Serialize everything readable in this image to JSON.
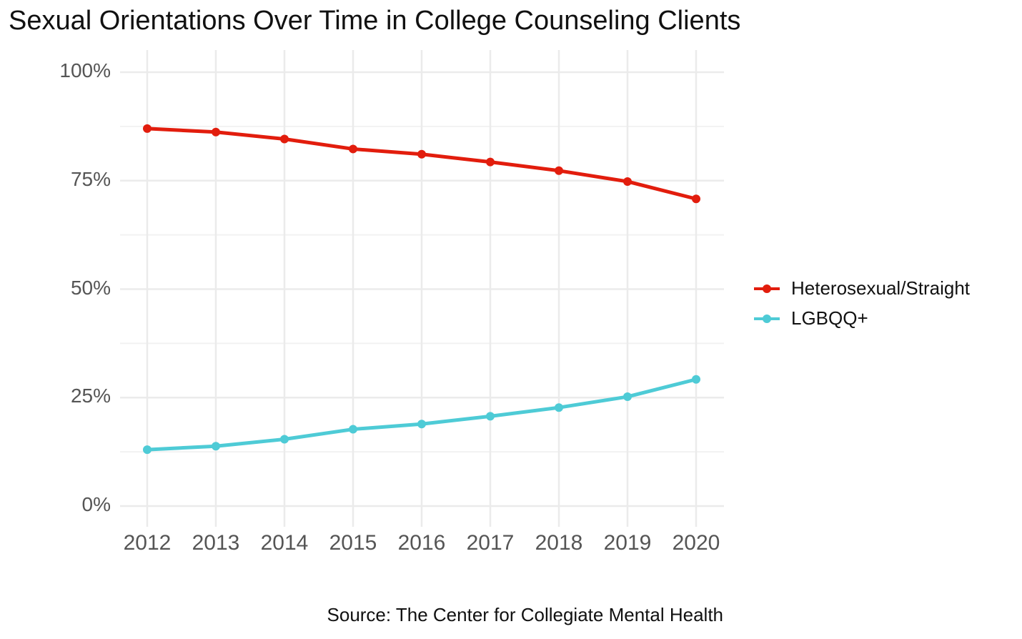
{
  "chart_data": {
    "type": "line",
    "title": "Sexual Orientations Over Time in College Counseling Clients",
    "caption": "Source: The Center for Collegiate Mental Health",
    "xlabel": "",
    "ylabel": "",
    "x": [
      2012,
      2013,
      2014,
      2015,
      2016,
      2017,
      2018,
      2019,
      2020
    ],
    "x_tick_labels": [
      "2012",
      "2013",
      "2014",
      "2015",
      "2016",
      "2017",
      "2018",
      "2019",
      "2020"
    ],
    "y_ticks": [
      0,
      25,
      50,
      75,
      100
    ],
    "y_tick_labels": [
      "0%",
      "25%",
      "50%",
      "75%",
      "100%"
    ],
    "ylim": [
      0,
      100
    ],
    "grid": true,
    "legend_position": "right",
    "series": [
      {
        "name": "Heterosexual/Straight",
        "color": "#e21d0d",
        "values": [
          87.0,
          86.2,
          84.6,
          82.3,
          81.1,
          79.3,
          77.3,
          74.8,
          70.8
        ]
      },
      {
        "name": "LGBQQ+",
        "color": "#4ecbd6",
        "values": [
          13.0,
          13.8,
          15.4,
          17.7,
          18.9,
          20.7,
          22.7,
          25.2,
          29.2
        ]
      }
    ]
  }
}
